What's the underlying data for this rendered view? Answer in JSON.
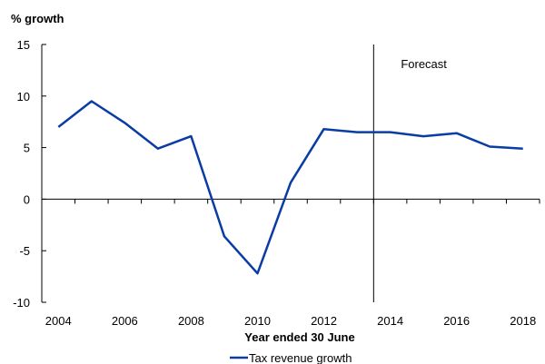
{
  "chart_data": {
    "type": "line",
    "ylabel": "% growth",
    "xlabel": "Year ended 30 June",
    "ylim": [
      -10,
      15
    ],
    "xlim": [
      2003.5,
      2018.5
    ],
    "yticks": [
      -10,
      -5,
      0,
      5,
      10,
      15
    ],
    "xticks": [
      2004,
      2006,
      2008,
      2010,
      2012,
      2014,
      2016,
      2018
    ],
    "grid": false,
    "legend_position": "bottom",
    "forecast_start": 2013.5,
    "annotation": "Forecast",
    "series": [
      {
        "name": "Tax revenue growth",
        "color": "#0a3ca5",
        "x": [
          2004,
          2005,
          2006,
          2007,
          2008,
          2009,
          2010,
          2011,
          2012,
          2013,
          2014,
          2015,
          2016,
          2017,
          2018
        ],
        "values": [
          7.0,
          9.5,
          7.4,
          4.9,
          6.1,
          -3.6,
          -7.2,
          1.6,
          6.8,
          6.5,
          6.5,
          6.1,
          6.4,
          5.1,
          4.9
        ]
      }
    ]
  }
}
